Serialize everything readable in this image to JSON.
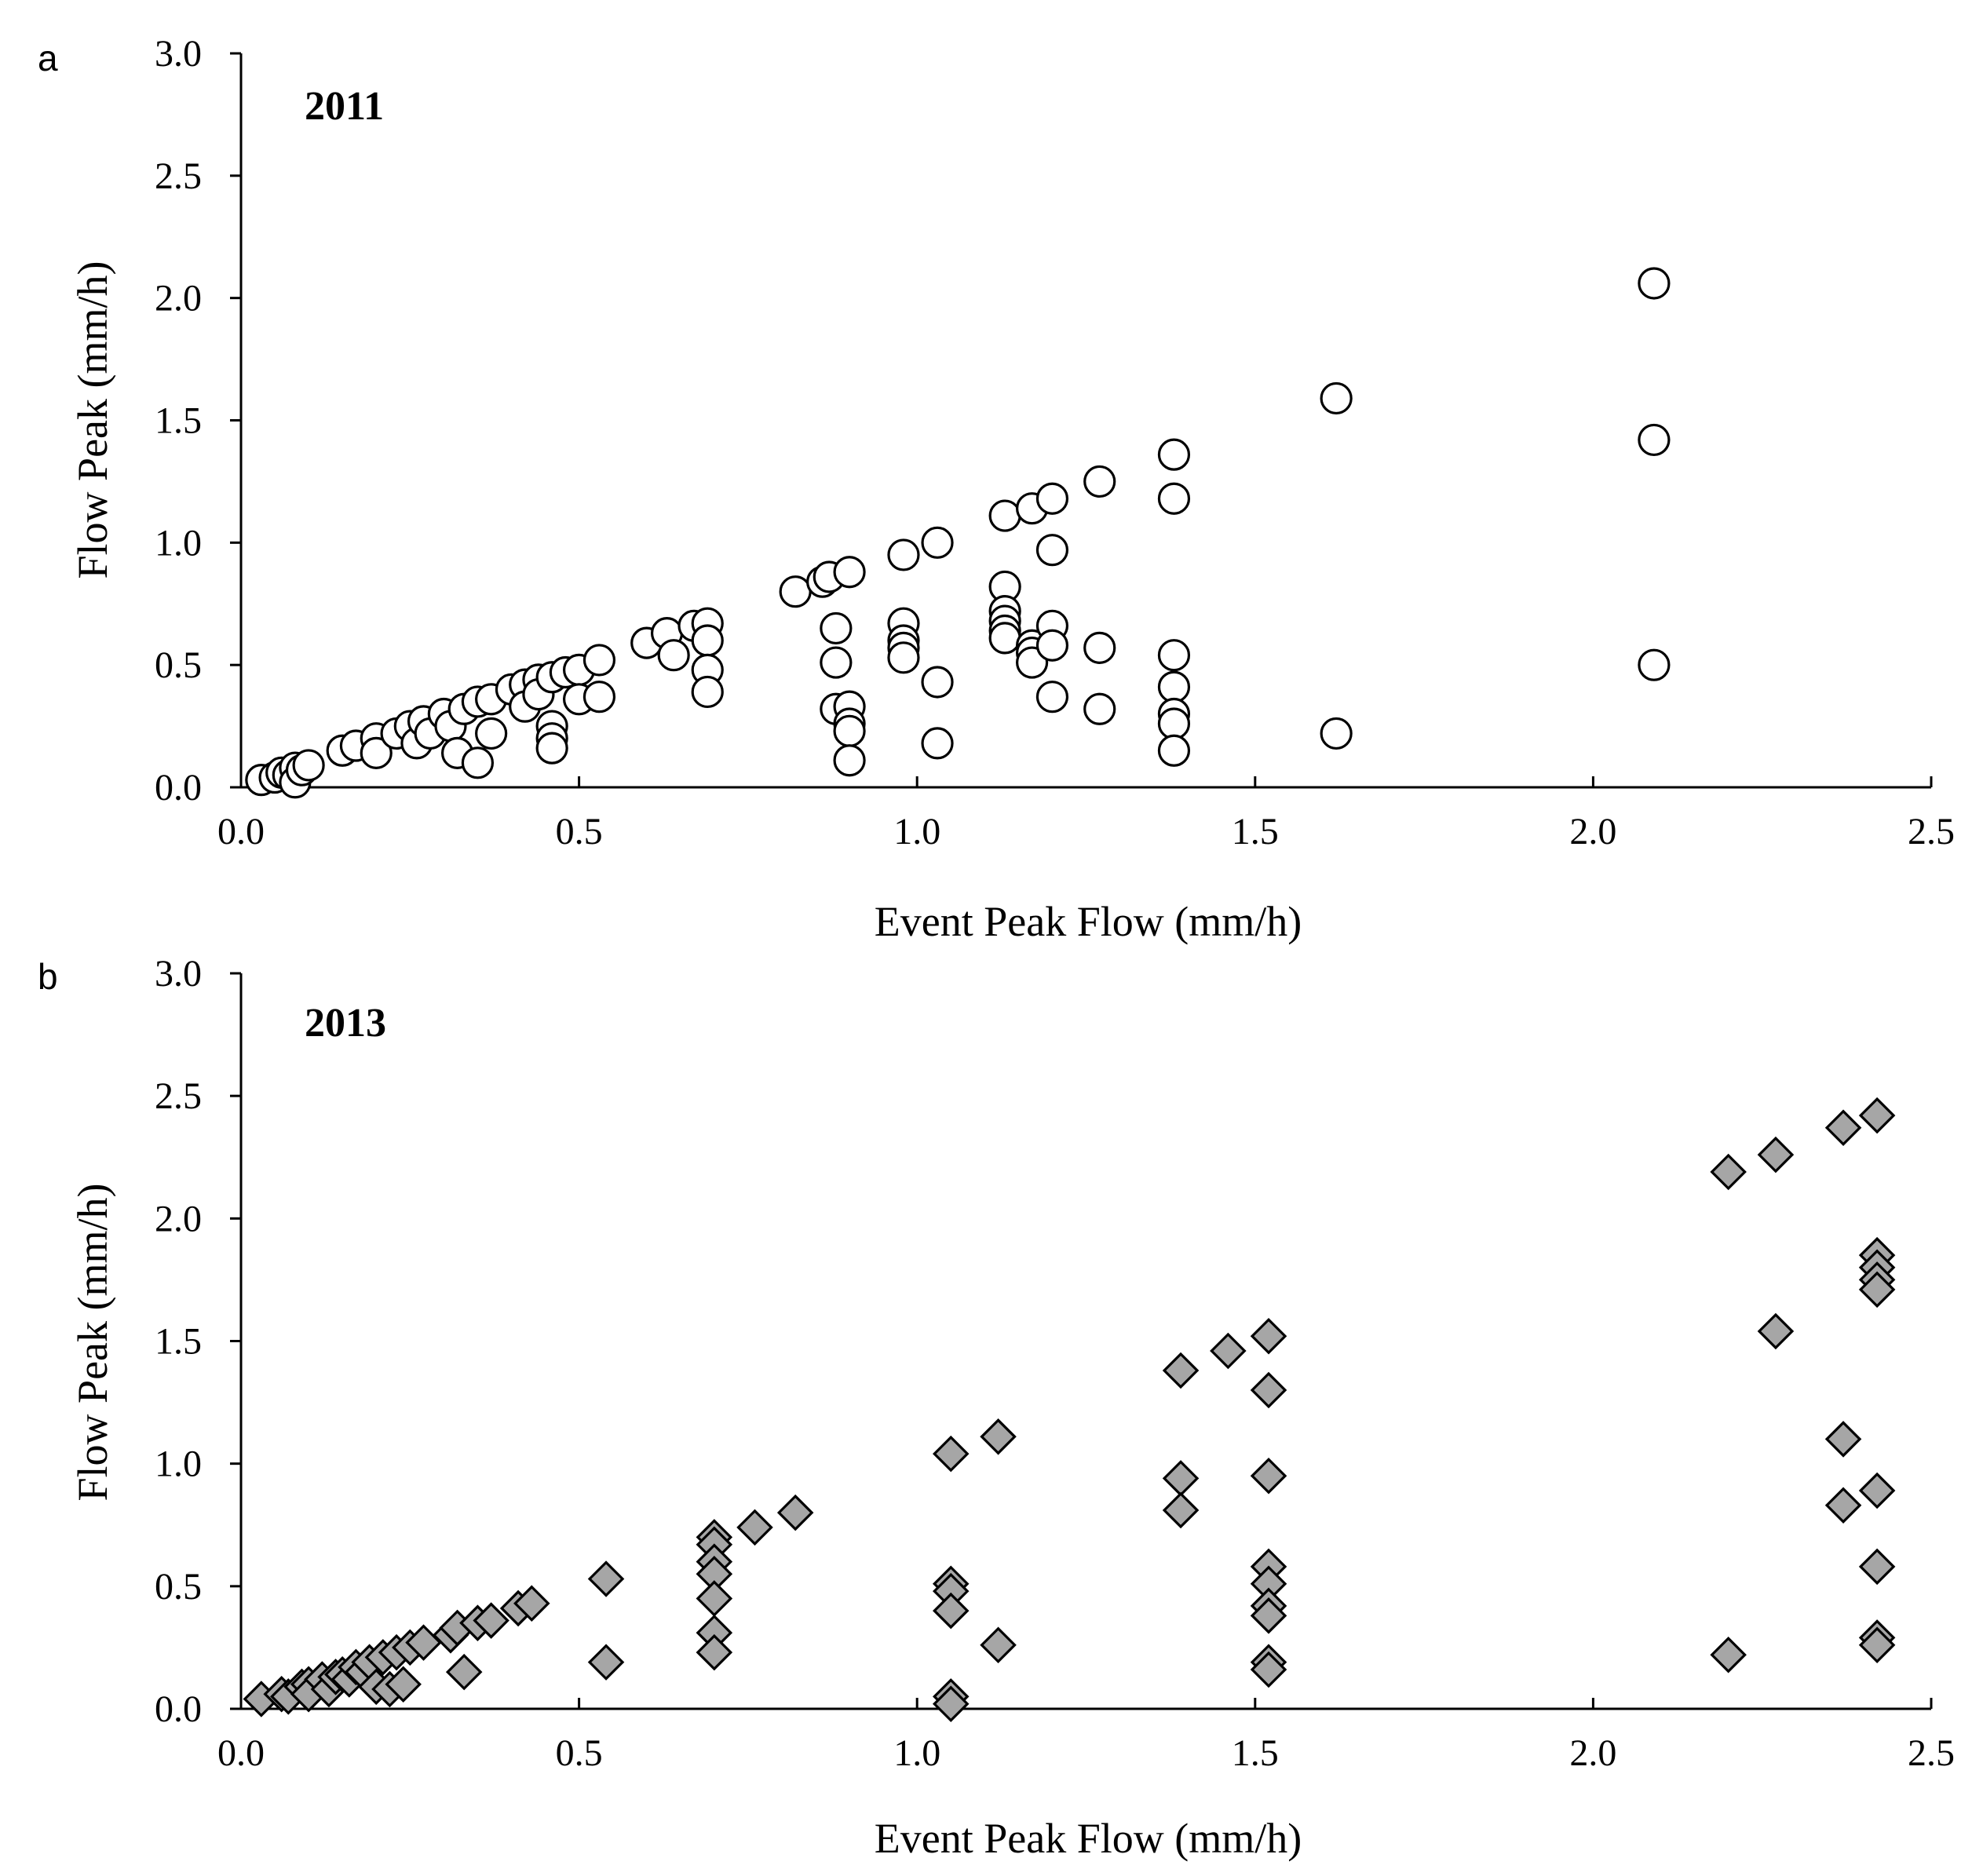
{
  "chart_data": [
    {
      "type": "scatter",
      "panel": "a",
      "year_label": "2011",
      "xlabel": "Event Peak Flow (mm/h)",
      "ylabel": "Flow Peak (mm/h)",
      "xlim": [
        0,
        2.5
      ],
      "ylim": [
        0,
        3.0
      ],
      "xticks": [
        "0.0",
        "0.5",
        "1.0",
        "1.5",
        "2.0",
        "2.5"
      ],
      "yticks": [
        "0.0",
        "0.5",
        "1.0",
        "1.5",
        "2.0",
        "2.5",
        "3.0"
      ],
      "marker": "circle",
      "marker_fill": "#ffffff",
      "marker_stroke": "#000000",
      "points": [
        [
          0.03,
          0.03
        ],
        [
          0.05,
          0.04
        ],
        [
          0.06,
          0.06
        ],
        [
          0.07,
          0.05
        ],
        [
          0.08,
          0.08
        ],
        [
          0.08,
          0.02
        ],
        [
          0.09,
          0.07
        ],
        [
          0.1,
          0.09
        ],
        [
          0.15,
          0.15
        ],
        [
          0.17,
          0.17
        ],
        [
          0.2,
          0.2
        ],
        [
          0.2,
          0.14
        ],
        [
          0.23,
          0.22
        ],
        [
          0.25,
          0.25
        ],
        [
          0.26,
          0.18
        ],
        [
          0.27,
          0.27
        ],
        [
          0.28,
          0.22
        ],
        [
          0.3,
          0.3
        ],
        [
          0.31,
          0.25
        ],
        [
          0.32,
          0.14
        ],
        [
          0.33,
          0.32
        ],
        [
          0.35,
          0.35
        ],
        [
          0.35,
          0.1
        ],
        [
          0.37,
          0.36
        ],
        [
          0.37,
          0.22
        ],
        [
          0.4,
          0.4
        ],
        [
          0.42,
          0.42
        ],
        [
          0.42,
          0.33
        ],
        [
          0.44,
          0.44
        ],
        [
          0.44,
          0.38
        ],
        [
          0.46,
          0.45
        ],
        [
          0.46,
          0.25
        ],
        [
          0.46,
          0.2
        ],
        [
          0.46,
          0.16
        ],
        [
          0.48,
          0.47
        ],
        [
          0.5,
          0.48
        ],
        [
          0.5,
          0.36
        ],
        [
          0.53,
          0.52
        ],
        [
          0.53,
          0.37
        ],
        [
          0.6,
          0.59
        ],
        [
          0.63,
          0.63
        ],
        [
          0.64,
          0.54
        ],
        [
          0.67,
          0.66
        ],
        [
          0.69,
          0.67
        ],
        [
          0.69,
          0.6
        ],
        [
          0.69,
          0.48
        ],
        [
          0.69,
          0.39
        ],
        [
          0.82,
          0.8
        ],
        [
          0.86,
          0.84
        ],
        [
          0.87,
          0.86
        ],
        [
          0.88,
          0.65
        ],
        [
          0.88,
          0.51
        ],
        [
          0.88,
          0.32
        ],
        [
          0.9,
          0.88
        ],
        [
          0.9,
          0.33
        ],
        [
          0.9,
          0.26
        ],
        [
          0.9,
          0.23
        ],
        [
          0.9,
          0.11
        ],
        [
          0.98,
          0.95
        ],
        [
          0.98,
          0.67
        ],
        [
          0.98,
          0.6
        ],
        [
          0.98,
          0.57
        ],
        [
          0.98,
          0.53
        ],
        [
          1.03,
          1.0
        ],
        [
          1.03,
          0.43
        ],
        [
          1.03,
          0.18
        ],
        [
          1.13,
          1.11
        ],
        [
          1.13,
          0.82
        ],
        [
          1.13,
          0.72
        ],
        [
          1.13,
          0.68
        ],
        [
          1.13,
          0.64
        ],
        [
          1.13,
          0.61
        ],
        [
          1.17,
          1.14
        ],
        [
          1.17,
          0.58
        ],
        [
          1.17,
          0.55
        ],
        [
          1.17,
          0.51
        ],
        [
          1.2,
          1.18
        ],
        [
          1.2,
          0.97
        ],
        [
          1.2,
          0.66
        ],
        [
          1.2,
          0.58
        ],
        [
          1.2,
          0.37
        ],
        [
          1.27,
          1.25
        ],
        [
          1.27,
          0.57
        ],
        [
          1.27,
          0.32
        ],
        [
          1.38,
          1.36
        ],
        [
          1.38,
          1.18
        ],
        [
          1.38,
          0.54
        ],
        [
          1.38,
          0.41
        ],
        [
          1.38,
          0.3
        ],
        [
          1.38,
          0.26
        ],
        [
          1.38,
          0.15
        ],
        [
          1.62,
          1.59
        ],
        [
          1.62,
          0.22
        ],
        [
          2.09,
          2.06
        ],
        [
          2.09,
          1.42
        ],
        [
          2.09,
          0.5
        ]
      ]
    },
    {
      "type": "scatter",
      "panel": "b",
      "year_label": "2013",
      "xlabel": "Event Peak Flow (mm/h)",
      "ylabel": "Flow Peak (mm/h)",
      "xlim": [
        0,
        2.5
      ],
      "ylim": [
        0,
        3.0
      ],
      "xticks": [
        "0.0",
        "0.5",
        "1.0",
        "1.5",
        "2.0",
        "2.5"
      ],
      "yticks": [
        "0.0",
        "0.5",
        "1.0",
        "1.5",
        "2.0",
        "2.5",
        "3.0"
      ],
      "marker": "diamond",
      "marker_fill": "#a6a6a6",
      "marker_stroke": "#000000",
      "points": [
        [
          0.03,
          0.04
        ],
        [
          0.06,
          0.06
        ],
        [
          0.07,
          0.05
        ],
        [
          0.09,
          0.09
        ],
        [
          0.1,
          0.1
        ],
        [
          0.1,
          0.06
        ],
        [
          0.12,
          0.12
        ],
        [
          0.13,
          0.08
        ],
        [
          0.14,
          0.13
        ],
        [
          0.15,
          0.14
        ],
        [
          0.16,
          0.12
        ],
        [
          0.17,
          0.17
        ],
        [
          0.18,
          0.15
        ],
        [
          0.19,
          0.19
        ],
        [
          0.2,
          0.09
        ],
        [
          0.21,
          0.21
        ],
        [
          0.22,
          0.08
        ],
        [
          0.23,
          0.23
        ],
        [
          0.24,
          0.1
        ],
        [
          0.25,
          0.25
        ],
        [
          0.27,
          0.27
        ],
        [
          0.31,
          0.3
        ],
        [
          0.32,
          0.33
        ],
        [
          0.33,
          0.15
        ],
        [
          0.35,
          0.35
        ],
        [
          0.37,
          0.36
        ],
        [
          0.41,
          0.41
        ],
        [
          0.43,
          0.43
        ],
        [
          0.54,
          0.53
        ],
        [
          0.54,
          0.19
        ],
        [
          0.7,
          0.7
        ],
        [
          0.7,
          0.67
        ],
        [
          0.7,
          0.6
        ],
        [
          0.7,
          0.55
        ],
        [
          0.7,
          0.45
        ],
        [
          0.7,
          0.31
        ],
        [
          0.7,
          0.23
        ],
        [
          0.76,
          0.74
        ],
        [
          0.82,
          0.8
        ],
        [
          1.05,
          1.04
        ],
        [
          1.05,
          0.51
        ],
        [
          1.05,
          0.48
        ],
        [
          1.05,
          0.4
        ],
        [
          1.05,
          0.05
        ],
        [
          1.05,
          0.02
        ],
        [
          1.12,
          1.11
        ],
        [
          1.12,
          0.26
        ],
        [
          1.39,
          1.38
        ],
        [
          1.39,
          0.94
        ],
        [
          1.39,
          0.81
        ],
        [
          1.46,
          1.46
        ],
        [
          1.52,
          1.52
        ],
        [
          1.52,
          1.3
        ],
        [
          1.52,
          0.95
        ],
        [
          1.52,
          0.58
        ],
        [
          1.52,
          0.51
        ],
        [
          1.52,
          0.42
        ],
        [
          1.52,
          0.38
        ],
        [
          1.52,
          0.19
        ],
        [
          1.52,
          0.16
        ],
        [
          2.2,
          2.19
        ],
        [
          2.2,
          0.22
        ],
        [
          2.27,
          2.26
        ],
        [
          2.27,
          1.54
        ],
        [
          2.37,
          2.37
        ],
        [
          2.37,
          1.1
        ],
        [
          2.37,
          0.83
        ],
        [
          2.42,
          2.42
        ],
        [
          2.42,
          1.85
        ],
        [
          2.42,
          1.8
        ],
        [
          2.42,
          1.75
        ],
        [
          2.42,
          1.71
        ],
        [
          2.42,
          0.89
        ],
        [
          2.42,
          0.58
        ],
        [
          2.42,
          0.29
        ],
        [
          2.42,
          0.26
        ]
      ]
    }
  ]
}
